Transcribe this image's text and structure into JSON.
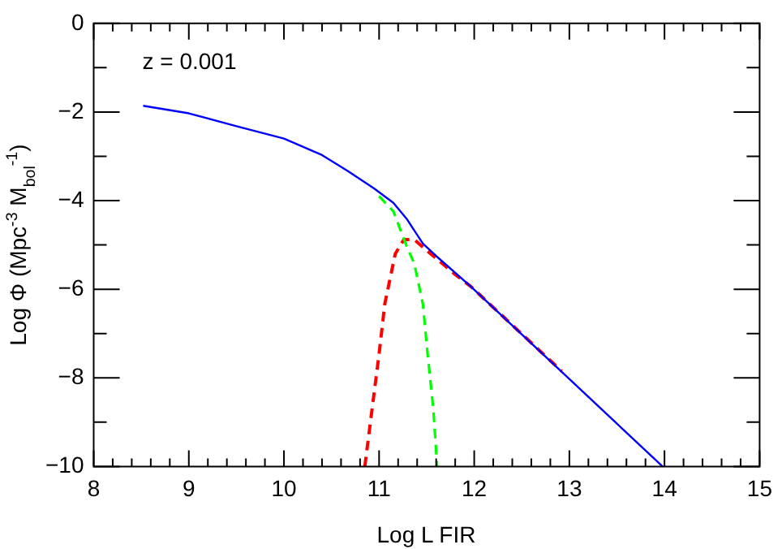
{
  "chart_data": {
    "type": "line",
    "xlabel": "Log L FIR",
    "ylabel": "Log Φ (Mpc$^{-3}$ M$_{bol}$$^{-1}$)",
    "annotations": [
      "z = 0.001"
    ],
    "xlim": [
      8,
      15
    ],
    "ylim": [
      -10,
      0
    ],
    "xticks": [
      8,
      {
        "value": 8.2,
        "label": null
      },
      {
        "value": 8.4,
        "label": null
      },
      {
        "value": 8.6,
        "label": null
      },
      {
        "value": 8.8,
        "label": null
      },
      9,
      {
        "value": 9.2,
        "label": null
      },
      {
        "value": 9.4,
        "label": null
      },
      {
        "value": 9.6,
        "label": null
      },
      {
        "value": 9.8,
        "label": null
      },
      10,
      {
        "value": 10.2,
        "label": null
      },
      {
        "value": 10.4,
        "label": null
      },
      {
        "value": 10.6,
        "label": null
      },
      {
        "value": 10.8,
        "label": null
      },
      11,
      {
        "value": 11.2,
        "label": null
      },
      {
        "value": 11.4,
        "label": null
      },
      {
        "value": 11.6,
        "label": null
      },
      {
        "value": 11.8,
        "label": null
      },
      12,
      {
        "value": 12.2,
        "label": null
      },
      {
        "value": 12.4,
        "label": null
      },
      {
        "value": 12.6,
        "label": null
      },
      {
        "value": 12.8,
        "label": null
      },
      13,
      {
        "value": 13.2,
        "label": null
      },
      {
        "value": 13.4,
        "label": null
      },
      {
        "value": 13.6,
        "label": null
      },
      {
        "value": 13.8,
        "label": null
      },
      14,
      {
        "value": 14.2,
        "label": null
      },
      {
        "value": 14.4,
        "label": null
      },
      {
        "value": 14.6,
        "label": null
      },
      {
        "value": 14.8,
        "label": null
      },
      15
    ],
    "yticks": [
      -10,
      {
        "value": -9,
        "label": null
      },
      -8,
      {
        "value": -7,
        "label": null
      },
      -6,
      {
        "value": -5,
        "label": null
      },
      -4,
      {
        "value": -3,
        "label": null
      },
      -2,
      {
        "value": -1,
        "label": null
      },
      0
    ],
    "grid": false,
    "legend": false,
    "marker": "none",
    "series": [
      {
        "color": "#ff0000",
        "line_style": "dashed",
        "x": [
          10.85,
          10.92,
          11.0,
          11.06,
          11.17,
          11.26,
          11.37,
          11.51,
          11.79,
          11.96,
          12.92
        ],
        "values": [
          -10,
          -8.81,
          -7.46,
          -6.33,
          -5.2,
          -4.88,
          -4.88,
          -5.14,
          -5.65,
          -5.93,
          -7.85
        ]
      },
      {
        "color": "#00ff00",
        "line_style": "dashed",
        "x": [
          11.0,
          11.15,
          11.29,
          11.37,
          11.46,
          11.51,
          11.57,
          11.61
        ],
        "values": [
          -3.9,
          -4.24,
          -5.03,
          -5.42,
          -6.33,
          -7.46,
          -8.7,
          -10
        ]
      },
      {
        "color": "#0000ff",
        "line_style": "solid",
        "x": [
          8.52,
          9.0,
          9.5,
          10.0,
          10.39,
          10.67,
          10.95,
          11.15,
          11.29,
          11.46,
          11.6,
          11.96,
          13.98
        ],
        "values": [
          -1.86,
          -2.03,
          -2.32,
          -2.6,
          -2.96,
          -3.33,
          -3.73,
          -4.05,
          -4.41,
          -4.97,
          -5.25,
          -5.93,
          -10
        ]
      }
    ]
  }
}
